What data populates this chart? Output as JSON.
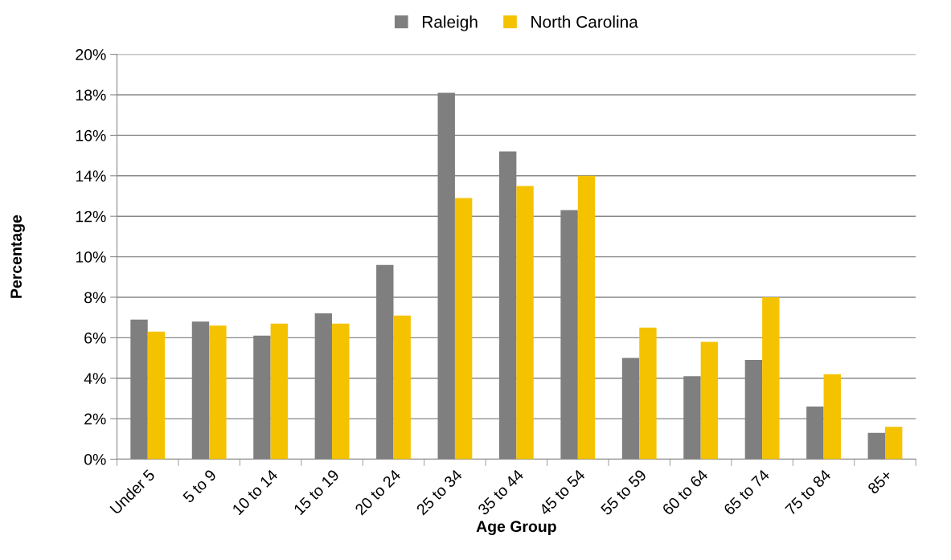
{
  "chart_data": {
    "type": "bar",
    "xlabel": "Age Group",
    "ylabel": "Percentage",
    "categories": [
      "Under 5",
      "5 to 9",
      "10 to 14",
      "15 to 19",
      "20 to 24",
      "25 to 34",
      "35 to 44",
      "45 to 54",
      "55 to 59",
      "60 to 64",
      "65 to 74",
      "75 to 84",
      "85+"
    ],
    "series": [
      {
        "name": "Raleigh",
        "color": "#7f7f7f",
        "values": [
          6.9,
          6.8,
          6.1,
          7.2,
          9.6,
          18.1,
          15.2,
          12.3,
          5.0,
          4.1,
          4.9,
          2.6,
          1.3
        ]
      },
      {
        "name": "North Carolina",
        "color": "#f5c200",
        "values": [
          6.3,
          6.6,
          6.7,
          6.7,
          7.1,
          12.9,
          13.5,
          14.0,
          6.5,
          5.8,
          8.0,
          4.2,
          1.6
        ]
      }
    ],
    "ylim": [
      0,
      20
    ],
    "yticks": [
      {
        "value": 0,
        "label": "0%"
      },
      {
        "value": 2,
        "label": "2%"
      },
      {
        "value": 4,
        "label": "4%"
      },
      {
        "value": 6,
        "label": "6%"
      },
      {
        "value": 8,
        "label": "8%"
      },
      {
        "value": 10,
        "label": "10%"
      },
      {
        "value": 12,
        "label": "12%"
      },
      {
        "value": 14,
        "label": "14%"
      },
      {
        "value": 16,
        "label": "16%"
      },
      {
        "value": 18,
        "label": "18%"
      },
      {
        "value": 20,
        "label": "20%"
      }
    ],
    "grid": "y",
    "legend": "top"
  }
}
